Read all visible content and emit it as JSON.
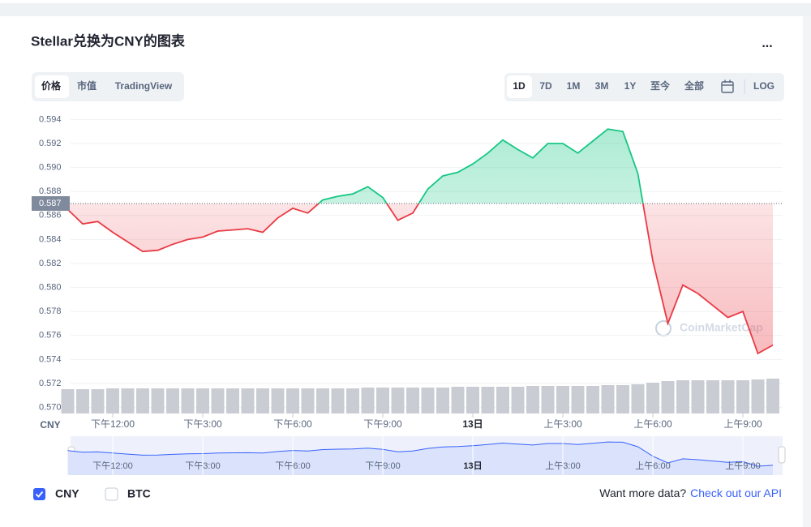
{
  "header": {
    "title": "Stellar兑换为CNY的图表",
    "menu": "..."
  },
  "tabs": [
    "价格",
    "市值",
    "TradingView"
  ],
  "ranges": [
    "1D",
    "7D",
    "1M",
    "3M",
    "1Y",
    "至今",
    "全部",
    "LOG"
  ],
  "chart_data": {
    "type": "line",
    "axis_label": "CNY",
    "watermark": "CoinMarketCap",
    "categories": [
      null,
      null,
      null,
      "下午12:00",
      null,
      null,
      null,
      null,
      null,
      "下午3:00",
      null,
      null,
      null,
      null,
      null,
      "下午6:00",
      null,
      null,
      null,
      null,
      null,
      "下午9:00",
      null,
      null,
      null,
      null,
      null,
      "13日",
      null,
      null,
      null,
      null,
      null,
      "上午3:00",
      null,
      null,
      null,
      null,
      null,
      "上午6:00",
      null,
      null,
      null,
      null,
      null,
      "上午9:00",
      null,
      null
    ],
    "values": [
      0.5865,
      0.5853,
      0.5855,
      0.5846,
      0.5838,
      0.583,
      0.5831,
      0.5836,
      0.584,
      0.5842,
      0.5847,
      0.5848,
      0.5849,
      0.5846,
      0.5858,
      0.5866,
      0.5862,
      0.5873,
      0.5876,
      0.5878,
      0.5884,
      0.5875,
      0.5856,
      0.5862,
      0.5882,
      0.5893,
      0.5896,
      0.5903,
      0.5912,
      0.5923,
      0.5915,
      0.5908,
      0.592,
      0.592,
      0.5912,
      0.5922,
      0.5932,
      0.593,
      0.5895,
      0.5822,
      0.577,
      0.5802,
      0.5795,
      0.5785,
      0.5775,
      0.578,
      0.5745,
      0.5752
    ],
    "volume": [
      30,
      30,
      30,
      31,
      31,
      31,
      31,
      31,
      31,
      31,
      31,
      31,
      31,
      31,
      31,
      31,
      31,
      31,
      31,
      31,
      32,
      32,
      32,
      32,
      32,
      32,
      33,
      33,
      33,
      33,
      33,
      34,
      34,
      34,
      34,
      34,
      35,
      35,
      36,
      38,
      40,
      41,
      41,
      41,
      41,
      41,
      42,
      43
    ],
    "reference": 0.587,
    "up_color": "#16c784",
    "down_color": "#ea3943",
    "volume_color": "#c9ccd2",
    "navigator_color": "#3861fb",
    "ylim": [
      0.5695,
      0.5945
    ],
    "yticks": [
      {
        "value": 0.57,
        "label": "0.570"
      },
      0.572,
      0.574,
      0.576,
      0.578,
      {
        "value": 0.58,
        "label": "0.580"
      },
      0.582,
      0.584,
      0.586,
      0.588,
      {
        "value": 0.59,
        "label": "0.590"
      },
      0.592,
      0.594
    ],
    "grid": true
  },
  "legend": [
    "CNY",
    "BTC"
  ],
  "footer": {
    "text": "Want more data?",
    "link": "Check out our API"
  }
}
